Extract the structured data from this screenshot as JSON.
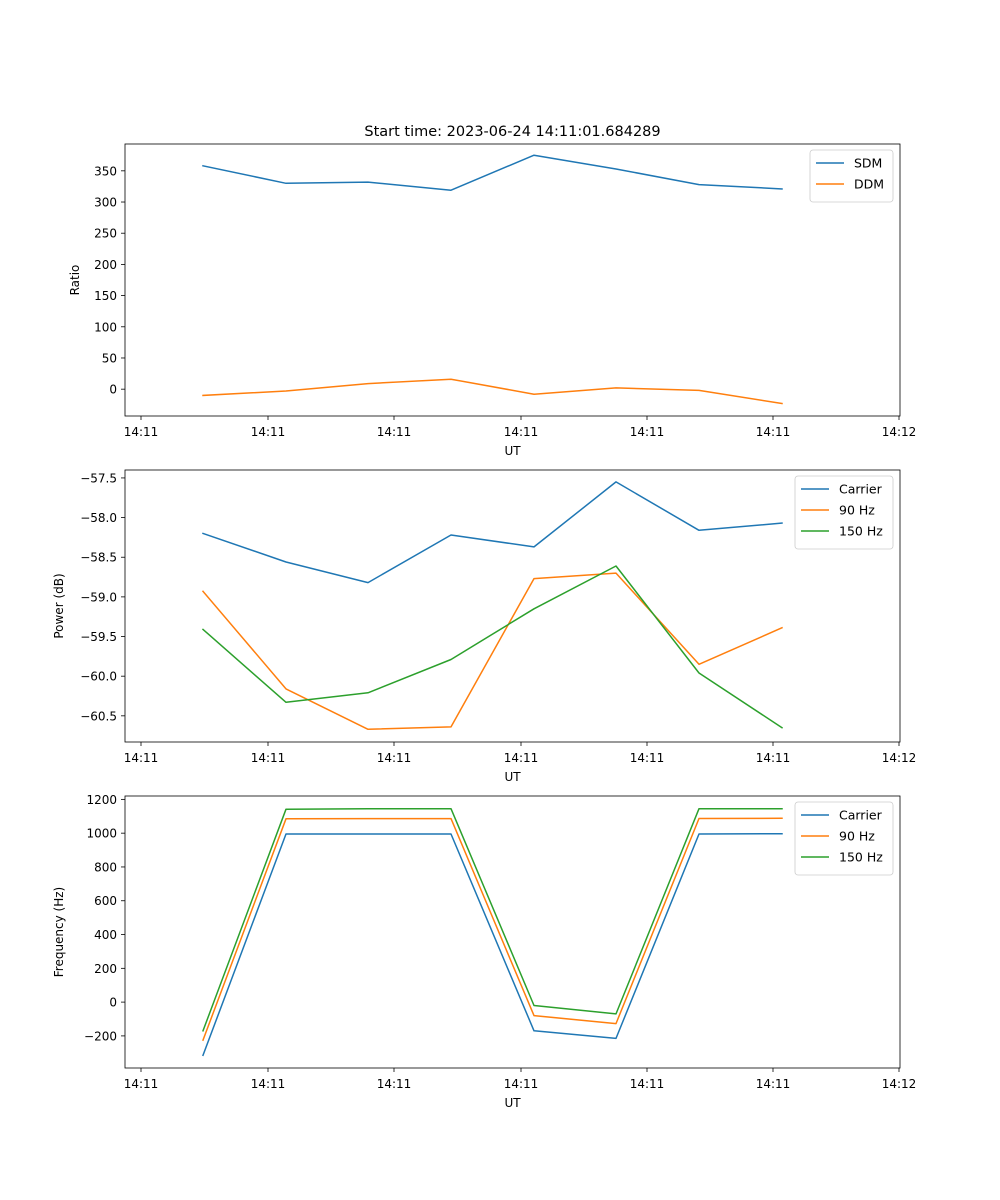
{
  "title": "Start time: 2023-06-24 14:11:01.684289",
  "chart_data": [
    {
      "type": "line",
      "xlabel": "UT",
      "ylabel": "Ratio",
      "xtick_labels": [
        "14:11",
        "14:11",
        "14:11",
        "14:11",
        "14:11",
        "14:11",
        "14:12"
      ],
      "ylim": [
        -43,
        393
      ],
      "yticks": [
        0,
        50,
        100,
        150,
        200,
        250,
        300,
        350
      ],
      "legend_loc": "upper right",
      "series": [
        {
          "name": "SDM",
          "color": "#1f77b4",
          "values": [
            358,
            330,
            332,
            319,
            375,
            353,
            328,
            321
          ]
        },
        {
          "name": "DDM",
          "color": "#ff7f0e",
          "values": [
            -10,
            -3,
            9,
            16,
            -8,
            2,
            -2,
            -23
          ]
        }
      ]
    },
    {
      "type": "line",
      "xlabel": "UT",
      "ylabel": "Power (dB)",
      "xtick_labels": [
        "14:11",
        "14:11",
        "14:11",
        "14:11",
        "14:11",
        "14:11",
        "14:12"
      ],
      "ylim": [
        -60.83,
        -57.4
      ],
      "yticks": [
        -60.5,
        -60.0,
        -59.5,
        -59.0,
        -58.5,
        -58.0,
        -57.5
      ],
      "ytick_labels": [
        "−60.5",
        "−60.0",
        "−59.5",
        "−59.0",
        "−58.5",
        "−58.0",
        "−57.5"
      ],
      "legend_loc": "upper right",
      "series": [
        {
          "name": "Carrier",
          "color": "#1f77b4",
          "values": [
            -58.2,
            -58.56,
            -58.82,
            -58.22,
            -58.37,
            -57.55,
            -58.16,
            -58.07
          ]
        },
        {
          "name": "90 Hz",
          "color": "#ff7f0e",
          "values": [
            -58.93,
            -60.16,
            -60.67,
            -60.64,
            -58.77,
            -58.7,
            -59.85,
            -59.39
          ]
        },
        {
          "name": "150 Hz",
          "color": "#2ca02c",
          "values": [
            -59.41,
            -60.33,
            -60.21,
            -59.79,
            -59.15,
            -58.61,
            -59.96,
            -60.65
          ]
        }
      ]
    },
    {
      "type": "line",
      "xlabel": "UT",
      "ylabel": "Frequency (Hz)",
      "xtick_labels": [
        "14:11",
        "14:11",
        "14:11",
        "14:11",
        "14:11",
        "14:11",
        "14:12"
      ],
      "ylim": [
        -390,
        1220
      ],
      "yticks": [
        -200,
        0,
        200,
        400,
        600,
        800,
        1000,
        1200
      ],
      "ytick_labels": [
        "−200",
        "0",
        "200",
        "400",
        "600",
        "800",
        "1000",
        "1200"
      ],
      "legend_loc": "upper right",
      "series": [
        {
          "name": "Carrier",
          "color": "#1f77b4",
          "values": [
            -315,
            995,
            995,
            995,
            -170,
            -215,
            995,
            997
          ]
        },
        {
          "name": "90 Hz",
          "color": "#ff7f0e",
          "values": [
            -225,
            1085,
            1086,
            1086,
            -80,
            -127,
            1087,
            1088
          ]
        },
        {
          "name": "150 Hz",
          "color": "#2ca02c",
          "values": [
            -170,
            1142,
            1145,
            1145,
            -20,
            -70,
            1145,
            1145
          ]
        }
      ]
    }
  ],
  "ytick_labels_first": [
    "0",
    "50",
    "100",
    "150",
    "200",
    "250",
    "300",
    "350"
  ]
}
